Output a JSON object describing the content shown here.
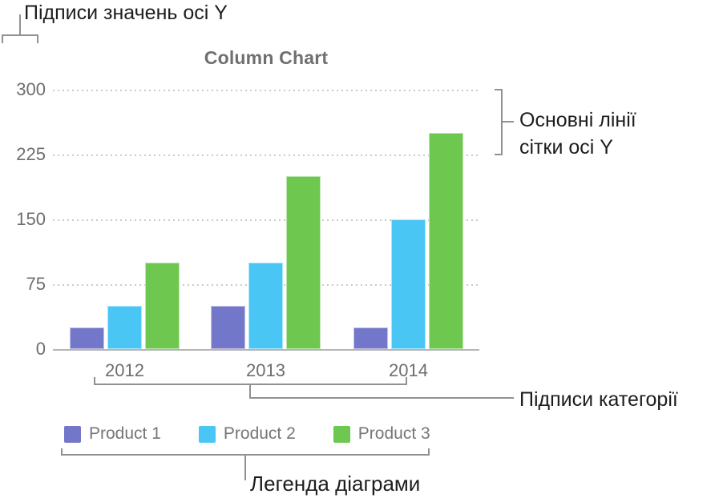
{
  "annotations": {
    "y_value_labels": "Підписи значень осі Y",
    "y_gridlines_line1": "Основні лінії",
    "y_gridlines_line2": "сітки осі Y",
    "category_labels": "Підписи категорії",
    "chart_legend": "Легенда діаграми"
  },
  "chart_data": {
    "type": "bar",
    "title": "Column Chart",
    "categories": [
      "2012",
      "2013",
      "2014"
    ],
    "series": [
      {
        "name": "Product 1",
        "color": "#7377c9",
        "values": [
          25,
          50,
          25
        ]
      },
      {
        "name": "Product 2",
        "color": "#4ac6f5",
        "values": [
          50,
          100,
          150
        ]
      },
      {
        "name": "Product 3",
        "color": "#6ec74e",
        "values": [
          100,
          200,
          250
        ]
      }
    ],
    "yticks": [
      0,
      75,
      150,
      225,
      300
    ],
    "ylim": [
      0,
      300
    ],
    "xlabel": "",
    "ylabel": "",
    "grid": "horizontal-dotted",
    "legend_position": "bottom"
  },
  "colors": {
    "background": "#ffffff",
    "title_text": "#6f6f6f",
    "axis_text": "#6e6e6e",
    "legend_text": "#767676",
    "gridline": "#c9c9c9",
    "axis_line": "#b5b5b5",
    "bracket": "#919191",
    "annotation_text": "#1d1d1f"
  }
}
